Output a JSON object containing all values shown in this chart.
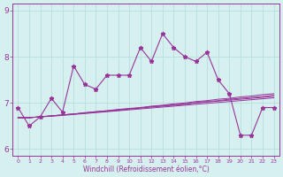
{
  "xlabel": "Windchill (Refroidissement éolien,°C)",
  "x_values": [
    0,
    1,
    2,
    3,
    4,
    5,
    6,
    7,
    8,
    9,
    10,
    11,
    12,
    13,
    14,
    15,
    16,
    17,
    18,
    19,
    20,
    21,
    22,
    23
  ],
  "main_line": [
    6.9,
    6.5,
    6.7,
    7.1,
    6.8,
    7.8,
    7.4,
    7.3,
    7.6,
    7.6,
    7.6,
    8.2,
    7.9,
    8.5,
    8.2,
    8.0,
    7.9,
    8.1,
    7.5,
    7.2,
    6.3,
    6.3,
    6.9,
    6.9
  ],
  "reg_line1": [
    6.68,
    6.68,
    6.7,
    6.72,
    6.74,
    6.76,
    6.79,
    6.81,
    6.83,
    6.86,
    6.88,
    6.9,
    6.93,
    6.95,
    6.98,
    7.0,
    7.03,
    7.05,
    7.08,
    7.1,
    7.13,
    7.15,
    7.18,
    7.2
  ],
  "reg_line2": [
    6.68,
    6.68,
    6.7,
    6.72,
    6.74,
    6.76,
    6.78,
    6.81,
    6.83,
    6.85,
    6.87,
    6.89,
    6.92,
    6.94,
    6.96,
    6.98,
    7.01,
    7.03,
    7.05,
    7.08,
    7.1,
    7.12,
    7.14,
    7.17
  ],
  "reg_line3": [
    6.68,
    6.68,
    6.7,
    6.72,
    6.74,
    6.76,
    6.78,
    6.8,
    6.82,
    6.84,
    6.87,
    6.89,
    6.91,
    6.93,
    6.95,
    6.97,
    7.0,
    7.02,
    7.04,
    7.06,
    7.08,
    7.1,
    7.12,
    7.14
  ],
  "reg_line4": [
    6.68,
    6.68,
    6.7,
    6.71,
    6.73,
    6.75,
    6.77,
    6.79,
    6.81,
    6.83,
    6.85,
    6.87,
    6.89,
    6.91,
    6.93,
    6.95,
    6.97,
    6.99,
    7.01,
    7.03,
    7.05,
    7.07,
    7.09,
    7.11
  ],
  "line_color": "#993399",
  "bg_color": "#d6f0f0",
  "grid_color": "#b8dede",
  "ylim": [
    5.85,
    9.15
  ],
  "yticks": [
    6,
    7,
    8,
    9
  ],
  "text_color": "#993399"
}
